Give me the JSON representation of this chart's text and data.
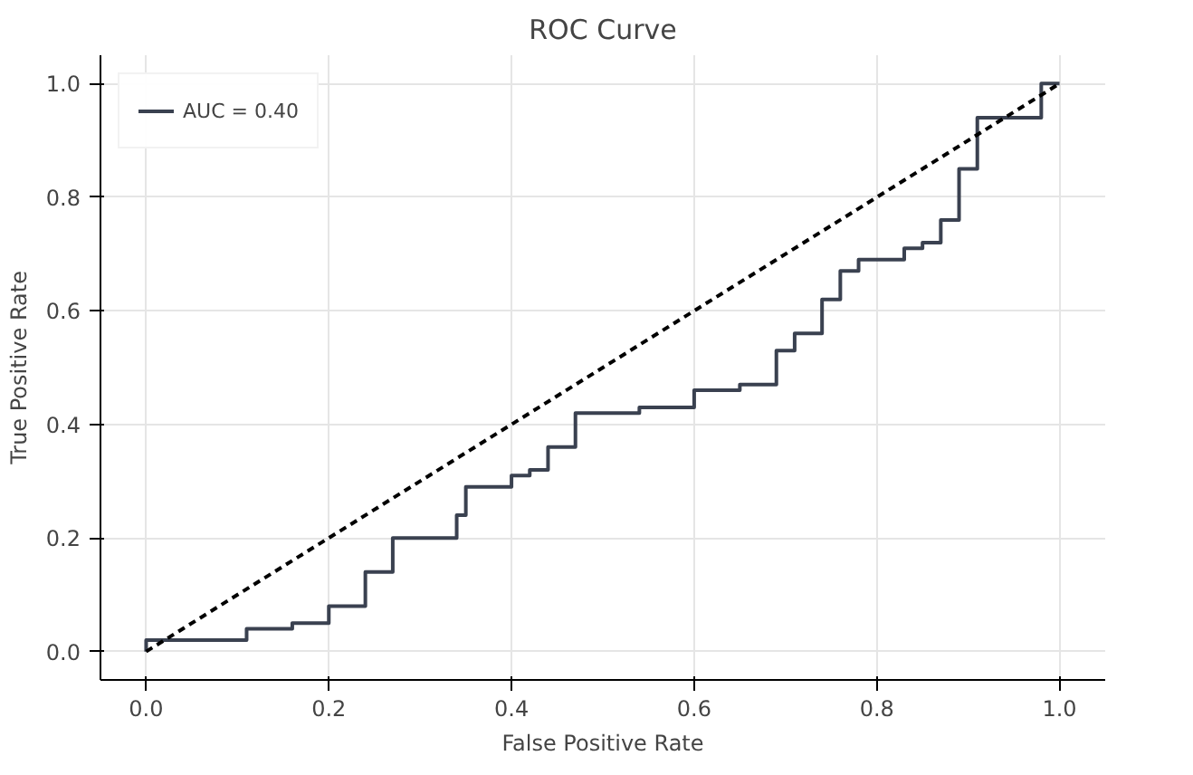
{
  "chart_data": {
    "type": "step",
    "title": "ROC Curve",
    "xlabel": "False Positive Rate",
    "ylabel": "True Positive Rate",
    "xlim": [
      -0.05,
      1.05
    ],
    "ylim": [
      -0.05,
      1.05
    ],
    "xticks": [
      {
        "value": 0,
        "label": "0.0"
      },
      0.2,
      0.4,
      0.6,
      0.8,
      {
        "value": 1,
        "label": "1.0"
      }
    ],
    "yticks": [
      {
        "value": 0,
        "label": "0.0"
      },
      0.2,
      0.4,
      0.6,
      0.8,
      {
        "value": 1,
        "label": "1.0"
      }
    ],
    "grid": true,
    "legend": "top left",
    "series": [
      {
        "name": "AUC = 0.40",
        "color": "#3a4150",
        "x": [
          0,
          0,
          0.11,
          0.16,
          0.2,
          0.24,
          0.27,
          0.34,
          0.35,
          0.4,
          0.42,
          0.44,
          0.47,
          0.54,
          0.6,
          0.65,
          0.69,
          0.71,
          0.74,
          0.76,
          0.78,
          0.83,
          0.85,
          0.87,
          0.89,
          0.91,
          0.98,
          1.0
        ],
        "values": [
          0,
          0.02,
          0.04,
          0.05,
          0.08,
          0.14,
          0.2,
          0.24,
          0.29,
          0.31,
          0.32,
          0.36,
          0.42,
          0.43,
          0.46,
          0.47,
          0.53,
          0.56,
          0.62,
          0.67,
          0.69,
          0.71,
          0.72,
          0.76,
          0.85,
          0.94,
          1.0,
          1.0
        ]
      },
      {
        "color": "#000000",
        "type": "line",
        "line_style": "dashed",
        "x": [
          0,
          1
        ],
        "values": [
          0,
          1
        ]
      }
    ]
  }
}
